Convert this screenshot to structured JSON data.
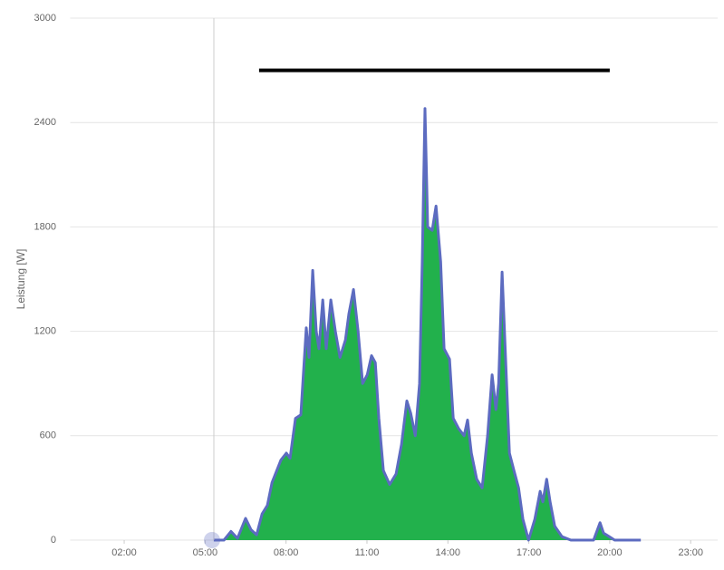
{
  "chart_data": {
    "type": "area",
    "y_label": "Leistung [W]",
    "xlim": [
      0,
      24
    ],
    "xticks": [
      {
        "value": 2,
        "label": "02:00"
      },
      {
        "value": 5,
        "label": "05:00"
      },
      {
        "value": 8,
        "label": "08:00"
      },
      {
        "value": 11,
        "label": "11:00"
      },
      {
        "value": 14,
        "label": "14:00"
      },
      {
        "value": 17,
        "label": "17:00"
      },
      {
        "value": 20,
        "label": "20:00"
      },
      {
        "value": 23,
        "label": "23:00"
      }
    ],
    "ylim": [
      0,
      3000
    ],
    "yticks": [
      0,
      600,
      1200,
      1800,
      2400,
      3000
    ],
    "grid": true,
    "series": [
      {
        "color": "#5c6bc0",
        "fill": "#22b14c",
        "x": [
          5.32,
          5.7,
          5.96,
          6.2,
          6.5,
          6.7,
          6.91,
          7.11,
          7.31,
          7.48,
          7.81,
          8.01,
          8.15,
          8.35,
          8.55,
          8.75,
          8.85,
          8.99,
          9.12,
          9.22,
          9.36,
          9.49,
          9.66,
          9.83,
          10.0,
          10.2,
          10.33,
          10.5,
          10.67,
          10.84,
          11.01,
          11.17,
          11.31,
          11.44,
          11.61,
          11.84,
          12.08,
          12.28,
          12.48,
          12.62,
          12.79,
          12.95,
          13.05,
          13.15,
          13.25,
          13.42,
          13.56,
          13.73,
          13.86,
          14.06,
          14.2,
          14.4,
          14.6,
          14.73,
          14.87,
          15.07,
          15.27,
          15.47,
          15.64,
          15.78,
          15.88,
          16.01,
          16.15,
          16.28,
          16.45,
          16.62,
          16.78,
          16.99,
          17.22,
          17.42,
          17.52,
          17.66,
          17.79,
          17.96,
          18.23,
          18.56,
          19.4,
          19.64,
          19.77,
          19.98,
          20.18,
          21.15
        ],
        "values": [
          0,
          0,
          50,
          10,
          125,
          60,
          30,
          150,
          200,
          330,
          460,
          500,
          470,
          700,
          720,
          1220,
          1050,
          1550,
          1200,
          1100,
          1380,
          1100,
          1380,
          1200,
          1050,
          1150,
          1300,
          1440,
          1200,
          900,
          950,
          1060,
          1020,
          700,
          400,
          320,
          380,
          550,
          800,
          730,
          600,
          900,
          1600,
          2480,
          1800,
          1780,
          1920,
          1600,
          1100,
          1040,
          700,
          640,
          600,
          690,
          500,
          350,
          300,
          600,
          950,
          750,
          900,
          1540,
          1000,
          500,
          400,
          300,
          120,
          0,
          120,
          280,
          220,
          350,
          220,
          80,
          20,
          0,
          0,
          100,
          40,
          20,
          0,
          0
        ]
      },
      {
        "color": "#000000",
        "x": [
          7,
          20
        ],
        "values": [
          2700,
          2700
        ]
      }
    ]
  }
}
